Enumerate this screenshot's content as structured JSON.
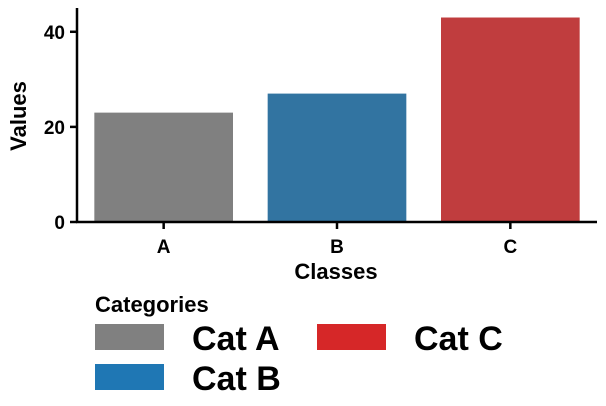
{
  "chart_data": {
    "type": "bar",
    "categories": [
      "A",
      "B",
      "C"
    ],
    "values": [
      23,
      27,
      43
    ],
    "colors": [
      "#808080",
      "#3274a1",
      "#c03d3e"
    ],
    "xlabel": "Classes",
    "ylabel": "Values",
    "ylim": [
      0,
      45
    ],
    "yticks": [
      0,
      20,
      40
    ],
    "grid": false,
    "legend": {
      "title": "Categories",
      "placement": "bottom",
      "entries": [
        {
          "label": "Cat A",
          "color": "#808080"
        },
        {
          "label": "Cat B",
          "color": "#1f77b4"
        },
        {
          "label": "Cat C",
          "color": "#d62728"
        }
      ]
    }
  }
}
